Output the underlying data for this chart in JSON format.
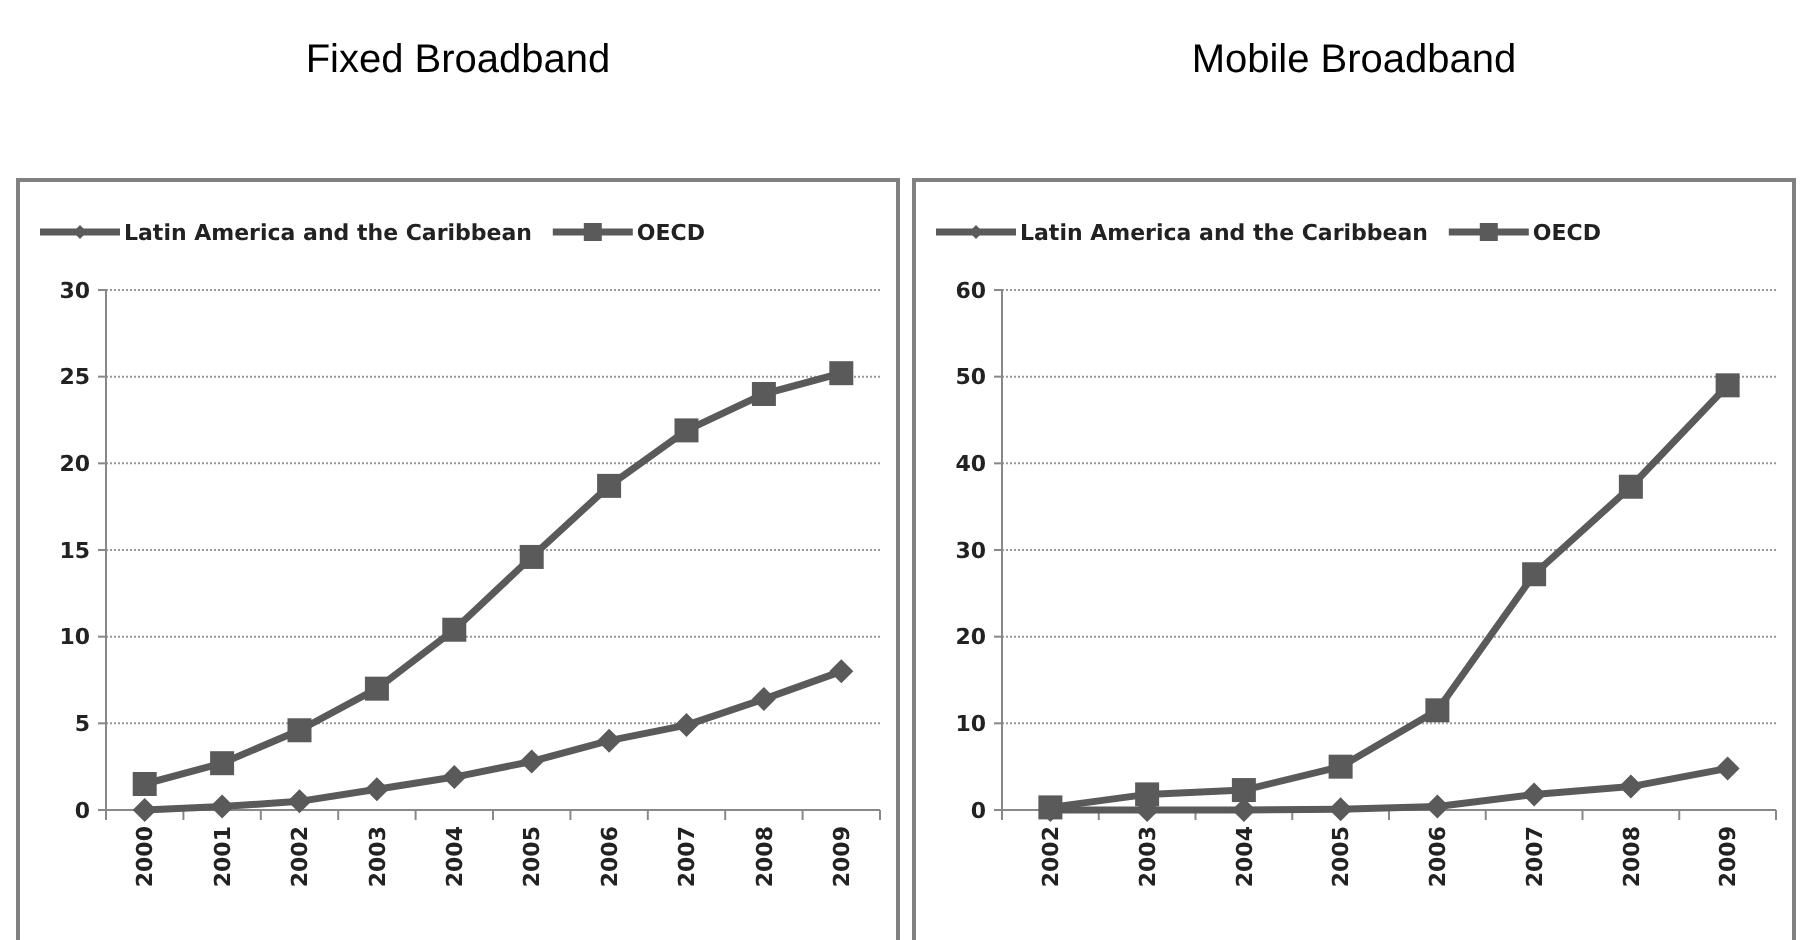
{
  "chart_data": [
    {
      "type": "line",
      "title": "Fixed Broadband",
      "categories": [
        "2000",
        "2001",
        "2002",
        "2003",
        "2004",
        "2005",
        "2006",
        "2007",
        "2008",
        "2009"
      ],
      "series": [
        {
          "name": "Latin America and the Caribbean",
          "color": "#5a5a5a",
          "marker": "diamond",
          "values": [
            0,
            0.2,
            0.5,
            1.2,
            1.9,
            2.8,
            4.0,
            4.9,
            6.4,
            8.0
          ]
        },
        {
          "name": "OECD",
          "color": "#5a5a5a",
          "marker": "square",
          "values": [
            1.5,
            2.7,
            4.6,
            7.0,
            10.4,
            14.6,
            18.7,
            21.9,
            24.0,
            25.2
          ]
        }
      ],
      "ylim": [
        0,
        30
      ],
      "yticks": [
        0,
        5,
        10,
        15,
        20,
        25,
        30
      ],
      "grid": "y",
      "legend": "top"
    },
    {
      "type": "line",
      "title": "Mobile Broadband",
      "categories": [
        "2002",
        "2003",
        "2004",
        "2005",
        "2006",
        "2007",
        "2008",
        "2009"
      ],
      "series": [
        {
          "name": "Latin America and the Caribbean",
          "color": "#5a5a5a",
          "marker": "diamond",
          "values": [
            0,
            0,
            0,
            0.1,
            0.4,
            1.8,
            2.7,
            4.8
          ]
        },
        {
          "name": "OECD",
          "color": "#5a5a5a",
          "marker": "square",
          "values": [
            0.3,
            1.8,
            2.3,
            5.0,
            11.5,
            27.2,
            37.3,
            49.0
          ]
        }
      ],
      "ylim": [
        0,
        60
      ],
      "yticks": [
        0,
        10,
        20,
        30,
        40,
        50,
        60
      ],
      "grid": "y",
      "legend": "top"
    }
  ]
}
